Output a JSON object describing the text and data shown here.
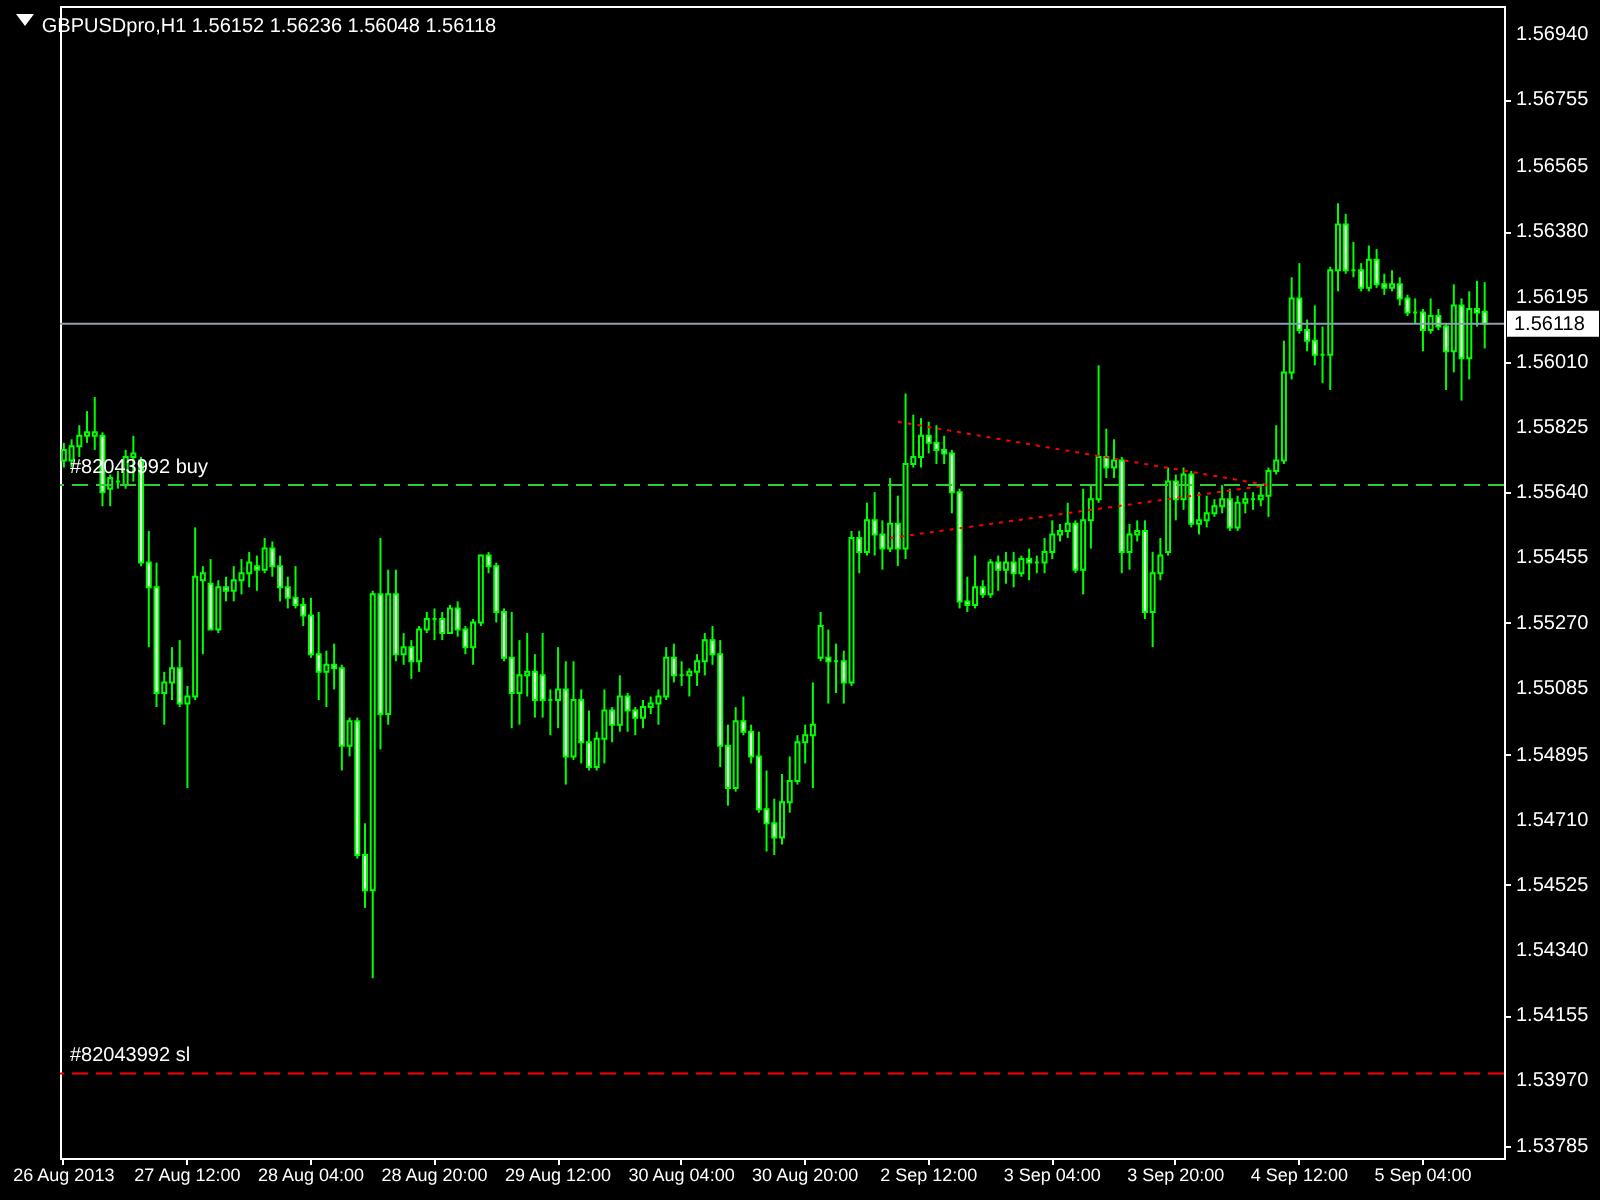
{
  "chart_data": {
    "type": "candlestick",
    "title": "GBPUSDpro,H1  1.56152 1.56236 1.56048 1.56118",
    "color": "#00ff00",
    "categories": [
      "26 Aug 2013",
      null,
      null,
      null,
      null,
      null,
      null,
      null,
      null,
      null,
      null,
      null,
      null,
      null,
      null,
      null,
      "27 Aug 12:00",
      null,
      null,
      null,
      null,
      null,
      null,
      null,
      null,
      null,
      null,
      null,
      null,
      null,
      null,
      null,
      "28 Aug 04:00",
      null,
      null,
      null,
      null,
      null,
      null,
      null,
      null,
      null,
      null,
      null,
      null,
      null,
      null,
      null,
      "28 Aug 20:00",
      null,
      null,
      null,
      null,
      null,
      null,
      null,
      null,
      null,
      null,
      null,
      null,
      null,
      null,
      null,
      "29 Aug 12:00",
      null,
      null,
      null,
      null,
      null,
      null,
      null,
      null,
      null,
      null,
      null,
      null,
      null,
      null,
      null,
      "30 Aug 04:00",
      null,
      null,
      null,
      null,
      null,
      null,
      null,
      null,
      null,
      null,
      null,
      null,
      null,
      null,
      null,
      "30 Aug 20:00",
      null,
      null,
      null,
      null,
      null,
      null,
      null,
      null,
      null,
      null,
      null,
      null,
      null,
      null,
      null,
      "2 Sep 12:00",
      null,
      null,
      null,
      null,
      null,
      null,
      null,
      null,
      null,
      null,
      null,
      null,
      null,
      null,
      null,
      "3 Sep 04:00",
      null,
      null,
      null,
      null,
      null,
      null,
      null,
      null,
      null,
      null,
      null,
      null,
      null,
      null,
      null,
      "3 Sep 20:00",
      null,
      null,
      null,
      null,
      null,
      null,
      null,
      null,
      null,
      null,
      null,
      null,
      null,
      null,
      null,
      "4 Sep 12:00",
      null,
      null,
      null,
      null,
      null,
      null,
      null,
      null,
      null,
      null,
      null,
      null,
      null,
      null,
      null,
      "5 Sep 04:00",
      null,
      null,
      null,
      null,
      null,
      null,
      null,
      null
    ],
    "ohlc": [
      [
        1.5573,
        1.5578,
        1.5571,
        1.5576
      ],
      [
        1.5573,
        1.5579,
        1.5571,
        1.5577
      ],
      [
        1.5577,
        1.5583,
        1.5574,
        1.558
      ],
      [
        1.558,
        1.5587,
        1.5578,
        1.5581
      ],
      [
        1.558,
        1.5591,
        1.5576,
        1.5581
      ],
      [
        1.558,
        1.5581,
        1.556,
        1.5564
      ],
      [
        1.5565,
        1.5569,
        1.556,
        1.5568
      ],
      [
        1.5567,
        1.557,
        1.5565,
        1.5567
      ],
      [
        1.5566,
        1.5576,
        1.5565,
        1.5574
      ],
      [
        1.5574,
        1.558,
        1.5567,
        1.5575
      ],
      [
        1.5573,
        1.5574,
        1.5543,
        1.5544
      ],
      [
        1.5544,
        1.5553,
        1.552,
        1.5537
      ],
      [
        1.5537,
        1.5544,
        1.5503,
        1.5507
      ],
      [
        1.5507,
        1.5513,
        1.5498,
        1.551
      ],
      [
        1.551,
        1.552,
        1.5505,
        1.5514
      ],
      [
        1.5514,
        1.5522,
        1.5503,
        1.5504
      ],
      [
        1.5504,
        1.5509,
        1.548,
        1.5506
      ],
      [
        1.5506,
        1.5554,
        1.5505,
        1.554
      ],
      [
        1.5539,
        1.5543,
        1.5518,
        1.5541
      ],
      [
        1.5538,
        1.5545,
        1.5525,
        1.5525
      ],
      [
        1.5525,
        1.5539,
        1.5524,
        1.5537
      ],
      [
        1.5537,
        1.554,
        1.5533,
        1.5536
      ],
      [
        1.5536,
        1.5543,
        1.5533,
        1.5539
      ],
      [
        1.5539,
        1.5545,
        1.5535,
        1.5541
      ],
      [
        1.5541,
        1.5547,
        1.5537,
        1.5544
      ],
      [
        1.5543,
        1.5546,
        1.5536,
        1.5542
      ],
      [
        1.5542,
        1.5551,
        1.5541,
        1.5548
      ],
      [
        1.5548,
        1.555,
        1.554,
        1.5543
      ],
      [
        1.5543,
        1.5546,
        1.5533,
        1.5537
      ],
      [
        1.5537,
        1.554,
        1.5531,
        1.5534
      ],
      [
        1.5534,
        1.5543,
        1.5531,
        1.5532
      ],
      [
        1.5532,
        1.5534,
        1.5526,
        1.5529
      ],
      [
        1.5529,
        1.5534,
        1.5517,
        1.5518
      ],
      [
        1.5518,
        1.553,
        1.5505,
        1.5513
      ],
      [
        1.5513,
        1.5519,
        1.5503,
        1.5515
      ],
      [
        1.5515,
        1.5521,
        1.5508,
        1.5514
      ],
      [
        1.5514,
        1.5515,
        1.5485,
        1.5492
      ],
      [
        1.5492,
        1.55,
        1.5489,
        1.5499
      ],
      [
        1.5499,
        1.55,
        1.546,
        1.5461
      ],
      [
        1.5461,
        1.547,
        1.5446,
        1.5451
      ],
      [
        1.5451,
        1.5536,
        1.5426,
        1.5535
      ],
      [
        1.5535,
        1.5551,
        1.5491,
        1.5501
      ],
      [
        1.5501,
        1.5542,
        1.5498,
        1.5535
      ],
      [
        1.5535,
        1.5542,
        1.5516,
        1.5518
      ],
      [
        1.5518,
        1.5524,
        1.5515,
        1.552
      ],
      [
        1.552,
        1.5522,
        1.5511,
        1.5516
      ],
      [
        1.5516,
        1.5526,
        1.5513,
        1.5525
      ],
      [
        1.5525,
        1.553,
        1.5524,
        1.5528
      ],
      [
        1.5528,
        1.5531,
        1.5522,
        1.5528
      ],
      [
        1.5528,
        1.553,
        1.5522,
        1.5524
      ],
      [
        1.5524,
        1.5532,
        1.5524,
        1.5531
      ],
      [
        1.5531,
        1.5533,
        1.5523,
        1.5525
      ],
      [
        1.5525,
        1.5526,
        1.5518,
        1.552
      ],
      [
        1.552,
        1.5528,
        1.5515,
        1.5527
      ],
      [
        1.5527,
        1.5546,
        1.5526,
        1.5546
      ],
      [
        1.5546,
        1.5547,
        1.5541,
        1.5543
      ],
      [
        1.5543,
        1.5544,
        1.5527,
        1.553
      ],
      [
        1.553,
        1.5531,
        1.5516,
        1.5517
      ],
      [
        1.5517,
        1.553,
        1.5497,
        1.5507
      ],
      [
        1.5507,
        1.5522,
        1.5498,
        1.5512
      ],
      [
        1.5512,
        1.5524,
        1.5506,
        1.5513
      ],
      [
        1.5513,
        1.5518,
        1.55,
        1.5505
      ],
      [
        1.5512,
        1.5524,
        1.55,
        1.5505
      ],
      [
        1.5505,
        1.5508,
        1.5495,
        1.5505
      ],
      [
        1.5505,
        1.552,
        1.5497,
        1.5508
      ],
      [
        1.5508,
        1.5516,
        1.5481,
        1.5489
      ],
      [
        1.5489,
        1.5516,
        1.5488,
        1.5505
      ],
      [
        1.5505,
        1.5508,
        1.5487,
        1.5493
      ],
      [
        1.5493,
        1.5502,
        1.5485,
        1.5486
      ],
      [
        1.5486,
        1.5496,
        1.5485,
        1.5494
      ],
      [
        1.5494,
        1.5508,
        1.5487,
        1.5502
      ],
      [
        1.5502,
        1.5503,
        1.5493,
        1.5498
      ],
      [
        1.5498,
        1.5512,
        1.5496,
        1.5506
      ],
      [
        1.5506,
        1.5507,
        1.5496,
        1.5502
      ],
      [
        1.5502,
        1.5503,
        1.5495,
        1.55
      ],
      [
        1.55,
        1.5505,
        1.5497,
        1.5503
      ],
      [
        1.5503,
        1.5506,
        1.5501,
        1.5504
      ],
      [
        1.5504,
        1.5508,
        1.5498,
        1.5506
      ],
      [
        1.5506,
        1.552,
        1.5505,
        1.5517
      ],
      [
        1.5517,
        1.5521,
        1.551,
        1.5512
      ],
      [
        1.5512,
        1.5516,
        1.5509,
        1.5512
      ],
      [
        1.5512,
        1.5514,
        1.5506,
        1.5513
      ],
      [
        1.5513,
        1.5518,
        1.5509,
        1.5516
      ],
      [
        1.5516,
        1.5524,
        1.5512,
        1.5522
      ],
      [
        1.5522,
        1.5526,
        1.5515,
        1.5518
      ],
      [
        1.5518,
        1.5522,
        1.5486,
        1.5492
      ],
      [
        1.5492,
        1.5498,
        1.5475,
        1.548
      ],
      [
        1.548,
        1.5503,
        1.5479,
        1.5499
      ],
      [
        1.5499,
        1.5506,
        1.5495,
        1.5496
      ],
      [
        1.5496,
        1.5498,
        1.5487,
        1.5489
      ],
      [
        1.5489,
        1.5496,
        1.5473,
        1.5474
      ],
      [
        1.5474,
        1.5485,
        1.5462,
        1.547
      ],
      [
        1.547,
        1.5477,
        1.5461,
        1.5466
      ],
      [
        1.5466,
        1.5484,
        1.5464,
        1.5476
      ],
      [
        1.5476,
        1.5489,
        1.5473,
        1.5482
      ],
      [
        1.5482,
        1.5495,
        1.5481,
        1.5493
      ],
      [
        1.5493,
        1.5498,
        1.5487,
        1.5495
      ],
      [
        1.5495,
        1.551,
        1.548,
        1.5498
      ],
      [
        1.5517,
        1.553,
        1.5516,
        1.5526
      ],
      [
        1.5517,
        1.5525,
        1.5504,
        1.5516
      ],
      [
        1.5516,
        1.5521,
        1.5507,
        1.5516
      ],
      [
        1.5516,
        1.5519,
        1.5504,
        1.551
      ],
      [
        1.551,
        1.5553,
        1.5509,
        1.5551
      ],
      [
        1.5551,
        1.5553,
        1.5541,
        1.5547
      ],
      [
        1.5547,
        1.5561,
        1.5546,
        1.5556
      ],
      [
        1.5556,
        1.5564,
        1.5546,
        1.5552
      ],
      [
        1.5552,
        1.5556,
        1.5542,
        1.5548
      ],
      [
        1.5548,
        1.5568,
        1.5547,
        1.5555
      ],
      [
        1.5555,
        1.5563,
        1.5543,
        1.5548
      ],
      [
        1.5548,
        1.5592,
        1.5545,
        1.5572
      ],
      [
        1.5572,
        1.5586,
        1.5571,
        1.5574
      ],
      [
        1.5574,
        1.5585,
        1.5571,
        1.558
      ],
      [
        1.558,
        1.5584,
        1.5575,
        1.5578
      ],
      [
        1.5578,
        1.5583,
        1.5572,
        1.5576
      ],
      [
        1.5576,
        1.558,
        1.5572,
        1.5575
      ],
      [
        1.5575,
        1.5576,
        1.5558,
        1.5564
      ],
      [
        1.5564,
        1.5565,
        1.5531,
        1.5533
      ],
      [
        1.5533,
        1.554,
        1.553,
        1.5532
      ],
      [
        1.5532,
        1.5546,
        1.5531,
        1.5537
      ],
      [
        1.5537,
        1.5539,
        1.5534,
        1.5535
      ],
      [
        1.5535,
        1.5545,
        1.5534,
        1.5544
      ],
      [
        1.5544,
        1.5546,
        1.5536,
        1.5542
      ],
      [
        1.5542,
        1.5547,
        1.5538,
        1.5544
      ],
      [
        1.5544,
        1.5547,
        1.5537,
        1.5541
      ],
      [
        1.5541,
        1.5546,
        1.554,
        1.5545
      ],
      [
        1.5545,
        1.5548,
        1.5539,
        1.5544
      ],
      [
        1.5544,
        1.5546,
        1.5541,
        1.5544
      ],
      [
        1.5544,
        1.5551,
        1.5541,
        1.5547
      ],
      [
        1.5547,
        1.5556,
        1.5545,
        1.5552
      ],
      [
        1.5552,
        1.5555,
        1.555,
        1.5553
      ],
      [
        1.5553,
        1.5561,
        1.5551,
        1.5555
      ],
      [
        1.5555,
        1.5556,
        1.5541,
        1.5542
      ],
      [
        1.5542,
        1.5565,
        1.5535,
        1.5556
      ],
      [
        1.5556,
        1.5566,
        1.5548,
        1.5562
      ],
      [
        1.5562,
        1.56,
        1.5561,
        1.5574
      ],
      [
        1.5574,
        1.5582,
        1.5568,
        1.5571
      ],
      [
        1.5571,
        1.5579,
        1.5568,
        1.5573
      ],
      [
        1.5573,
        1.5574,
        1.5541,
        1.5547
      ],
      [
        1.5547,
        1.5555,
        1.5542,
        1.5552
      ],
      [
        1.5552,
        1.5556,
        1.555,
        1.5553
      ],
      [
        1.5553,
        1.5556,
        1.5528,
        1.553
      ],
      [
        1.553,
        1.5547,
        1.552,
        1.5541
      ],
      [
        1.5541,
        1.5551,
        1.5539,
        1.5546
      ],
      [
        1.5547,
        1.5571,
        1.5546,
        1.5567
      ],
      [
        1.5567,
        1.5569,
        1.5556,
        1.5562
      ],
      [
        1.5562,
        1.5571,
        1.5559,
        1.5569
      ],
      [
        1.5569,
        1.557,
        1.5554,
        1.5555
      ],
      [
        1.5555,
        1.5564,
        1.5552,
        1.5556
      ],
      [
        1.5556,
        1.5563,
        1.5554,
        1.5558
      ],
      [
        1.5558,
        1.5562,
        1.5557,
        1.556
      ],
      [
        1.556,
        1.5566,
        1.5558,
        1.5562
      ],
      [
        1.5562,
        1.5565,
        1.5553,
        1.5554
      ],
      [
        1.5554,
        1.5563,
        1.5553,
        1.5561
      ],
      [
        1.5561,
        1.5564,
        1.5558,
        1.5562
      ],
      [
        1.5562,
        1.5564,
        1.5559,
        1.5562
      ],
      [
        1.5562,
        1.5566,
        1.556,
        1.5563
      ],
      [
        1.5563,
        1.5571,
        1.5557,
        1.557
      ],
      [
        1.557,
        1.5583,
        1.5569,
        1.5573
      ],
      [
        1.5573,
        1.5607,
        1.5572,
        1.5598
      ],
      [
        1.5598,
        1.5625,
        1.5596,
        1.5619
      ],
      [
        1.5619,
        1.5629,
        1.5609,
        1.561
      ],
      [
        1.561,
        1.5613,
        1.5604,
        1.5607
      ],
      [
        1.5607,
        1.5617,
        1.56,
        1.5603
      ],
      [
        1.5603,
        1.5611,
        1.5595,
        1.5603
      ],
      [
        1.5603,
        1.5628,
        1.5593,
        1.5627
      ],
      [
        1.5627,
        1.5646,
        1.5621,
        1.564
      ],
      [
        1.564,
        1.5643,
        1.5626,
        1.5627
      ],
      [
        1.5627,
        1.5635,
        1.5625,
        1.5627
      ],
      [
        1.5627,
        1.5629,
        1.5621,
        1.5622
      ],
      [
        1.5622,
        1.5634,
        1.5621,
        1.563
      ],
      [
        1.563,
        1.5633,
        1.5622,
        1.5623
      ],
      [
        1.5623,
        1.5626,
        1.562,
        1.5622
      ],
      [
        1.5622,
        1.5627,
        1.5621,
        1.5623
      ],
      [
        1.5623,
        1.5625,
        1.5617,
        1.5619
      ],
      [
        1.5619,
        1.562,
        1.5614,
        1.5615
      ],
      [
        1.5615,
        1.5619,
        1.5612,
        1.5615
      ],
      [
        1.5615,
        1.5616,
        1.5604,
        1.561
      ],
      [
        1.561,
        1.5619,
        1.5609,
        1.5614
      ],
      [
        1.5614,
        1.5616,
        1.561,
        1.5611
      ],
      [
        1.5611,
        1.5612,
        1.5593,
        1.5604
      ],
      [
        1.5604,
        1.5623,
        1.5598,
        1.5617
      ],
      [
        1.5617,
        1.5619,
        1.559,
        1.5602
      ],
      [
        1.5602,
        1.5621,
        1.5596,
        1.5616
      ],
      [
        1.5616,
        1.5624,
        1.5611,
        1.5615
      ],
      [
        1.56152,
        1.56236,
        1.56048,
        1.56118
      ]
    ],
    "series": [
      {
        "type": "line",
        "color": "#ff0000",
        "line_style": "dotted",
        "values": [
          null,
          null,
          null,
          null,
          null,
          null,
          null,
          null,
          null,
          null,
          null,
          null,
          null,
          null,
          null,
          null,
          null,
          null,
          null,
          null,
          null,
          null,
          null,
          null,
          null,
          null,
          null,
          null,
          null,
          null,
          null,
          null,
          null,
          null,
          null,
          null,
          null,
          null,
          null,
          null,
          null,
          null,
          null,
          null,
          null,
          null,
          null,
          null,
          null,
          null,
          null,
          null,
          null,
          null,
          null,
          null,
          null,
          null,
          null,
          null,
          null,
          null,
          null,
          null,
          null,
          null,
          null,
          null,
          null,
          null,
          null,
          null,
          null,
          null,
          null,
          null,
          null,
          null,
          null,
          null,
          null,
          null,
          null,
          null,
          null,
          null,
          null,
          null,
          null,
          null,
          null,
          null,
          null,
          null,
          null,
          null,
          null,
          null,
          null,
          null,
          null,
          null,
          null,
          null,
          null,
          null,
          null,
          null,
          1.5584,
          null,
          null,
          null,
          null,
          null,
          null,
          null,
          null,
          null,
          null,
          null,
          null,
          null,
          null,
          null,
          null,
          null,
          null,
          null,
          null,
          null,
          null,
          null,
          null,
          null,
          null,
          null,
          null,
          null,
          null,
          null,
          null,
          null,
          null,
          null,
          null,
          null,
          null,
          null,
          null,
          null,
          null,
          null,
          null,
          null,
          null,
          null,
          1.5566,
          null,
          null,
          null,
          null,
          null,
          null,
          null,
          null,
          null,
          null,
          null,
          null,
          null,
          null,
          null,
          null,
          null,
          null,
          null,
          null,
          null,
          null,
          null,
          null,
          null,
          null,
          null,
          null
        ]
      },
      {
        "type": "line",
        "color": "#ff0000",
        "line_style": "dotted",
        "values": [
          null,
          null,
          null,
          null,
          null,
          null,
          null,
          null,
          null,
          null,
          null,
          null,
          null,
          null,
          null,
          null,
          null,
          null,
          null,
          null,
          null,
          null,
          null,
          null,
          null,
          null,
          null,
          null,
          null,
          null,
          null,
          null,
          null,
          null,
          null,
          null,
          null,
          null,
          null,
          null,
          null,
          null,
          null,
          null,
          null,
          null,
          null,
          null,
          null,
          null,
          null,
          null,
          null,
          null,
          null,
          null,
          null,
          null,
          null,
          null,
          null,
          null,
          null,
          null,
          null,
          null,
          null,
          null,
          null,
          null,
          null,
          null,
          null,
          null,
          null,
          null,
          null,
          null,
          null,
          null,
          null,
          null,
          null,
          null,
          null,
          null,
          null,
          null,
          null,
          null,
          null,
          null,
          null,
          null,
          null,
          null,
          null,
          null,
          null,
          null,
          null,
          null,
          null,
          null,
          null,
          null,
          null,
          1.5551,
          null,
          null,
          null,
          null,
          null,
          null,
          null,
          null,
          null,
          null,
          null,
          null,
          null,
          null,
          null,
          null,
          null,
          null,
          null,
          null,
          null,
          null,
          null,
          null,
          null,
          null,
          null,
          null,
          null,
          null,
          null,
          null,
          null,
          null,
          null,
          null,
          null,
          null,
          null,
          null,
          null,
          null,
          null,
          null,
          null,
          null,
          null,
          null,
          1.5566,
          null,
          null,
          null,
          null,
          null,
          null,
          null,
          null,
          null,
          null,
          null,
          null,
          null,
          null,
          null,
          null,
          null,
          null,
          null,
          null,
          null,
          null,
          null,
          null,
          null,
          null,
          null,
          null
        ]
      }
    ],
    "ylim": [
      1.5375,
      1.5702
    ],
    "yticks": [
      {
        "value": 1.5694,
        "label": "1.56940"
      },
      1.56755,
      1.56565,
      {
        "value": 1.5638,
        "label": "1.56380"
      },
      1.56195,
      {
        "value": 1.5601,
        "label": "1.56010"
      },
      1.55825,
      {
        "value": 1.5564,
        "label": "1.55640"
      },
      1.55455,
      {
        "value": 1.5527,
        "label": "1.55270"
      },
      1.55085,
      1.54895,
      {
        "value": 1.5471,
        "label": "1.54710"
      },
      1.54525,
      {
        "value": 1.5434,
        "label": "1.54340"
      },
      1.54155,
      {
        "value": 1.5397,
        "label": "1.53970"
      },
      1.53785
    ],
    "ref_lines": [
      {
        "axis": "y",
        "value": 1.56118,
        "label": "1.56118",
        "color": "#8ea0b4",
        "line_style": "solid"
      },
      {
        "axis": "y",
        "value": 1.5566,
        "label": "#82043992 buy",
        "color": "#32cd32",
        "line_style": "dashed"
      },
      {
        "axis": "y",
        "value": 1.5399,
        "label": "#82043992 sl",
        "color": "#ff0000",
        "line_style": "dashed"
      }
    ]
  }
}
